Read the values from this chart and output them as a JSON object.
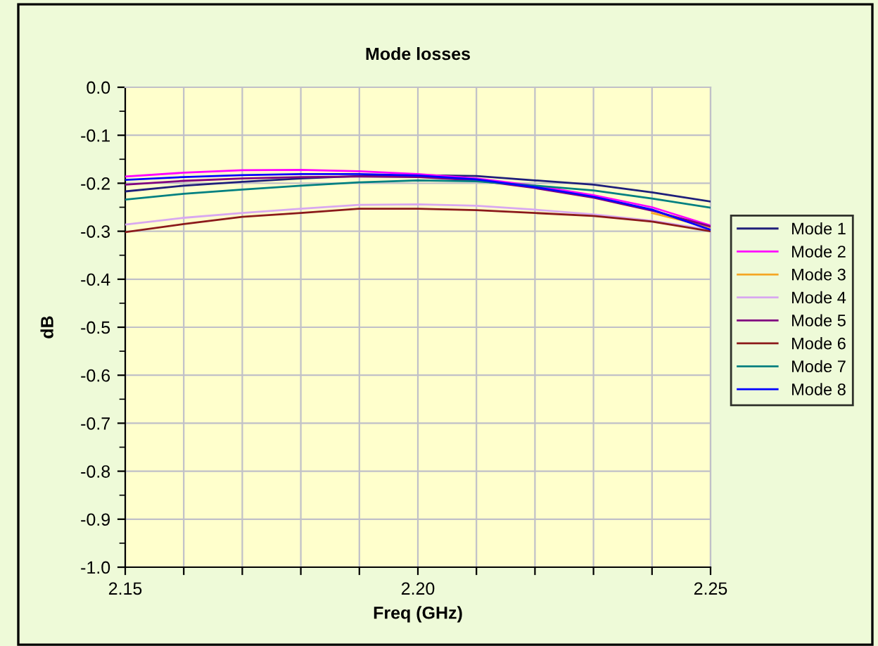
{
  "chart_data": {
    "type": "line",
    "title": "Mode losses",
    "xlabel": "Freq (GHz)",
    "ylabel": "dB",
    "x": [
      2.15,
      2.16,
      2.17,
      2.18,
      2.19,
      2.2,
      2.21,
      2.22,
      2.23,
      2.24,
      2.25
    ],
    "series": [
      {
        "name": "Mode 1",
        "color": "#1f1f7a",
        "values": [
          -0.217,
          -0.205,
          -0.197,
          -0.19,
          -0.185,
          -0.183,
          -0.185,
          -0.194,
          -0.203,
          -0.219,
          -0.238
        ]
      },
      {
        "name": "Mode 2",
        "color": "#ff00ff",
        "values": [
          -0.186,
          -0.178,
          -0.173,
          -0.172,
          -0.175,
          -0.181,
          -0.19,
          -0.205,
          -0.225,
          -0.25,
          -0.288
        ]
      },
      {
        "name": "Mode 3",
        "color": "#f5a623",
        "values": [
          null,
          null,
          null,
          null,
          null,
          null,
          null,
          null,
          null,
          -0.262,
          -0.292
        ]
      },
      {
        "name": "Mode 4",
        "color": "#d8a8f0",
        "values": [
          -0.286,
          -0.272,
          -0.262,
          -0.253,
          -0.245,
          -0.244,
          -0.247,
          -0.255,
          -0.265,
          -0.278,
          -0.297
        ]
      },
      {
        "name": "Mode 5",
        "color": "#800080",
        "values": [
          -0.203,
          -0.195,
          -0.19,
          -0.187,
          -0.186,
          -0.187,
          -0.194,
          -0.21,
          -0.23,
          -0.257,
          -0.29
        ]
      },
      {
        "name": "Mode 6",
        "color": "#8b1a1a",
        "values": [
          -0.302,
          -0.285,
          -0.27,
          -0.262,
          -0.253,
          -0.253,
          -0.256,
          -0.262,
          -0.268,
          -0.28,
          -0.3
        ]
      },
      {
        "name": "Mode 7",
        "color": "#008080",
        "values": [
          -0.234,
          -0.222,
          -0.213,
          -0.205,
          -0.198,
          -0.194,
          -0.196,
          -0.205,
          -0.215,
          -0.232,
          -0.251
        ]
      },
      {
        "name": "Mode 8",
        "color": "#0000ff",
        "values": [
          -0.193,
          -0.187,
          -0.183,
          -0.181,
          -0.181,
          -0.184,
          -0.192,
          -0.208,
          -0.228,
          -0.255,
          -0.297
        ]
      }
    ],
    "xlim": [
      2.15,
      2.25
    ],
    "xticks": [
      {
        "value": 2.15,
        "label": "2.15"
      },
      {
        "value": 2.16,
        "label": null
      },
      {
        "value": 2.17,
        "label": null
      },
      {
        "value": 2.18,
        "label": null
      },
      {
        "value": 2.19,
        "label": null
      },
      {
        "value": 2.2,
        "label": "2.20"
      },
      {
        "value": 2.21,
        "label": null
      },
      {
        "value": 2.22,
        "label": null
      },
      {
        "value": 2.23,
        "label": null
      },
      {
        "value": 2.24,
        "label": null
      },
      {
        "value": 2.25,
        "label": "2.25"
      }
    ],
    "ylim": [
      -1.0,
      0.0
    ],
    "yticks": [
      {
        "value": 0.0,
        "label": "0.0"
      },
      {
        "value": -0.1,
        "label": "-0.1"
      },
      {
        "value": -0.2,
        "label": "-0.2"
      },
      {
        "value": -0.3,
        "label": "-0.3"
      },
      {
        "value": -0.4,
        "label": "-0.4"
      },
      {
        "value": -0.5,
        "label": "-0.5"
      },
      {
        "value": -0.6,
        "label": "-0.6"
      },
      {
        "value": -0.7,
        "label": "-0.7"
      },
      {
        "value": -0.8,
        "label": "-0.8"
      },
      {
        "value": -0.9,
        "label": "-0.9"
      },
      {
        "value": -1.0,
        "label": "-1.0"
      }
    ],
    "grid": true,
    "legend": "right",
    "marker": "none",
    "line_style": "solid"
  }
}
